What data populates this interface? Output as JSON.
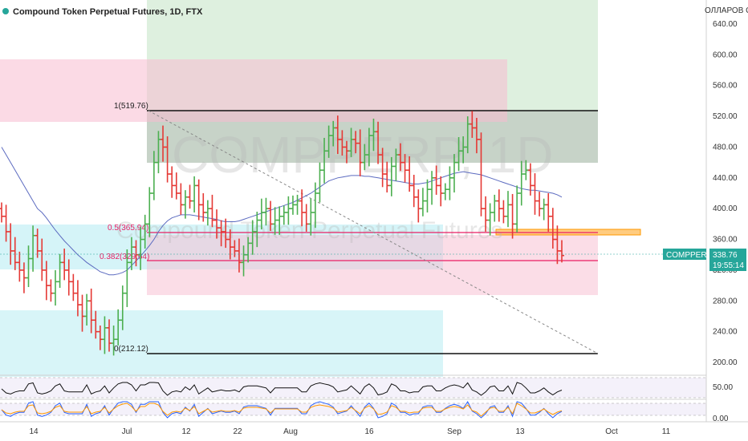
{
  "header": {
    "title": "Compound Token Perpetual Futures, 1D, FTX",
    "currency": "ОЛЛАРОВ СШ"
  },
  "watermark": {
    "symbol": "COMPPERP, 1D",
    "name": "Compound Token Perpetual Futures"
  },
  "price_label": {
    "symbol": "COMPPERP",
    "price": "338.76",
    "countdown": "19:55:14",
    "color": "#26a69a"
  },
  "colors": {
    "up": "#4caf50",
    "down": "#e53935",
    "ma": "#5c6bc0",
    "fib_line": "#e91e63",
    "green_zone": "#c8e6c9",
    "pink_zone": "#f8bbd0",
    "cyan_zone": "#b2ebf2",
    "gray_zone": "#bdbdbd",
    "orange": "#ff9800"
  },
  "chart_data": {
    "type": "ohlc",
    "timeframe": "1D",
    "ylim": [
      190,
      640
    ],
    "y_ticks": [
      "200.00",
      "240.00",
      "280.00",
      "320.00",
      "360.00",
      "400.00",
      "440.00",
      "480.00",
      "520.00",
      "560.00",
      "600.00",
      "640.00"
    ],
    "x_ticks": [
      "14",
      "Jul",
      "12",
      "22",
      "Aug",
      "16",
      "Sep",
      "13",
      "Oct",
      "11"
    ],
    "fib_levels": [
      {
        "label": "1(519.76)",
        "value": 519.76
      },
      {
        "label": "0.5(365.94)",
        "value": 365.94
      },
      {
        "label": "0.382(329.64)",
        "value": 329.64
      },
      {
        "label": "0(212.12)",
        "value": 212.12
      }
    ],
    "closes": [
      390,
      370,
      345,
      330,
      320,
      310,
      335,
      365,
      345,
      320,
      300,
      290,
      305,
      330,
      320,
      305,
      290,
      275,
      260,
      280,
      255,
      240,
      230,
      245,
      225,
      230,
      255,
      290,
      330,
      350,
      340,
      360,
      380,
      420,
      460,
      490,
      480,
      445,
      430,
      420,
      405,
      415,
      410,
      430,
      405,
      395,
      400,
      385,
      375,
      370,
      360,
      350,
      345,
      330,
      340,
      355,
      370,
      385,
      395,
      400,
      380,
      385,
      390,
      395,
      400,
      405,
      410,
      395,
      380,
      395,
      420,
      450,
      475,
      495,
      505,
      490,
      480,
      475,
      490,
      485,
      460,
      470,
      495,
      500,
      470,
      445,
      430,
      455,
      470,
      460,
      450,
      430,
      415,
      400,
      410,
      425,
      440,
      430,
      420,
      425,
      440,
      460,
      475,
      480,
      510,
      505,
      490,
      400,
      385,
      395,
      410,
      400,
      390,
      405,
      380,
      420,
      445,
      450,
      430,
      410,
      400,
      405,
      390,
      360,
      345,
      339
    ],
    "ma_values": [
      480,
      470,
      460,
      450,
      440,
      430,
      420,
      410,
      400,
      395,
      388,
      380,
      372,
      365,
      358,
      352,
      346,
      340,
      335,
      330,
      326,
      322,
      318,
      316,
      314,
      314,
      315,
      317,
      320,
      326,
      332,
      338,
      345,
      352,
      360,
      370,
      378,
      384,
      388,
      390,
      392,
      392,
      392,
      391,
      390,
      389,
      388,
      387,
      386,
      384,
      383,
      383,
      383,
      384,
      386,
      388,
      390,
      392,
      394,
      396,
      398,
      400,
      402,
      404,
      406,
      408,
      411,
      414,
      417,
      420,
      424,
      428,
      432,
      436,
      438,
      440,
      441,
      442,
      443,
      443,
      443,
      442,
      442,
      441,
      440,
      439,
      438,
      437,
      436,
      435,
      434,
      433,
      432,
      432,
      433,
      434,
      436,
      438,
      440,
      442,
      444,
      446,
      447,
      448,
      447,
      446,
      445,
      444,
      442,
      440,
      438,
      436,
      434,
      432,
      430,
      428,
      426,
      425,
      424,
      424,
      423,
      422,
      421,
      420,
      418,
      415
    ],
    "sub_ticks": [
      "50.00",
      "0.00"
    ]
  }
}
